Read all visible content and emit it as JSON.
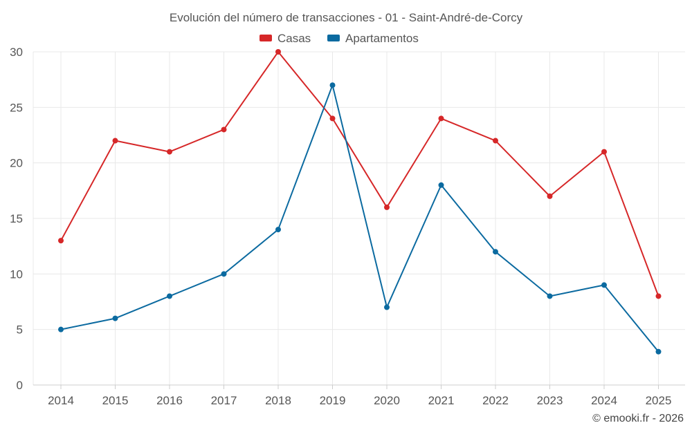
{
  "chart_data": {
    "type": "line",
    "title": "Evolución del número de transacciones - 01 - Saint-André-de-Corcy",
    "categories": [
      "2014",
      "2015",
      "2016",
      "2017",
      "2018",
      "2019",
      "2020",
      "2021",
      "2022",
      "2023",
      "2024",
      "2025"
    ],
    "series": [
      {
        "name": "Casas",
        "color": "#d62728",
        "values": [
          13,
          22,
          21,
          23,
          30,
          24,
          16,
          24,
          22,
          17,
          21,
          8
        ]
      },
      {
        "name": "Apartamentos",
        "color": "#0b6aa0",
        "values": [
          5,
          6,
          8,
          10,
          14,
          27,
          7,
          18,
          12,
          8,
          9,
          3
        ]
      }
    ],
    "ylim": [
      0,
      30
    ],
    "yticks": [
      "0",
      "5",
      "10",
      "15",
      "20",
      "25",
      "30"
    ],
    "xlabel": "",
    "ylabel": "",
    "grid": true,
    "legend": "top-center"
  },
  "credit": "© emooki.fr - 2026"
}
